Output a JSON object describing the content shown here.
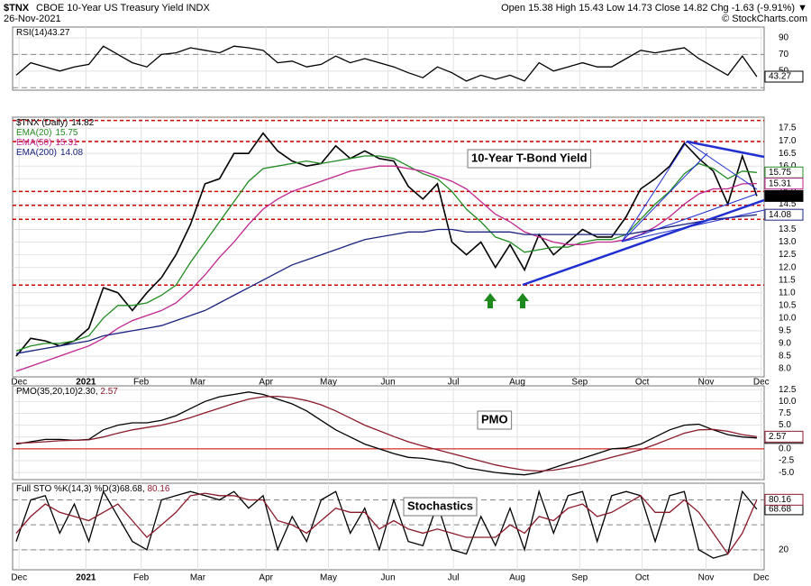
{
  "header": {
    "symbol": "$TNX",
    "name": "CBOE 10-Year US Treasury Yield INDX",
    "date": "26-Nov-2021",
    "quote": "Open 15.38  High 15.43  Low 14.73  Close 14.82  Chg -1.63 (-9.91%) ▼",
    "copyright": "© StockCharts.com"
  },
  "chart_data": [
    {
      "type": "line",
      "title": "RSI(14)",
      "ylim": [
        27,
        103
      ],
      "yticks": [
        90,
        70,
        50
      ],
      "hlines": [
        70,
        30
      ],
      "hline_color": "#888888",
      "series": [
        {
          "color": "#000000",
          "last_label": "43.27",
          "values": [
            45,
            60,
            55,
            50,
            55,
            58,
            80,
            70,
            60,
            55,
            70,
            72,
            78,
            75,
            72,
            80,
            78,
            75,
            60,
            62,
            55,
            58,
            68,
            60,
            65,
            60,
            55,
            48,
            42,
            55,
            48,
            38,
            45,
            40,
            45,
            38,
            60,
            50,
            55,
            60,
            55,
            55,
            65,
            75,
            72,
            75,
            78,
            65,
            55,
            45,
            68,
            43.27
          ]
        }
      ]
    },
    {
      "type": "line",
      "annotation": "10-Year T-Bond Yield",
      "ylim": [
        7.68,
        17.93
      ],
      "yticks": [
        {
          "value": 8,
          "label": "8.0"
        },
        8.5,
        {
          "value": 9,
          "label": "9.0"
        },
        9.5,
        {
          "value": 10,
          "label": "10.0"
        },
        10.5,
        {
          "value": 11,
          "label": "11.0"
        },
        11.5,
        {
          "value": 12,
          "label": "12.0"
        },
        12.5,
        {
          "value": 13,
          "label": "13.0"
        },
        13.5,
        {
          "value": 14,
          "label": "14.0"
        },
        14.5,
        {
          "value": 15,
          "label": "15.0"
        },
        15.5,
        {
          "value": 16,
          "label": "16.0"
        },
        16.5,
        {
          "value": 17,
          "label": "17.0"
        },
        17.5
      ],
      "xlim": [
        0,
        51.5
      ],
      "xticks": [
        {
          "value": 0.2,
          "label": "Dec"
        },
        {
          "value": 4.8,
          "label": "2021"
        },
        {
          "value": 8.6,
          "label": "Feb"
        },
        {
          "value": 12.5,
          "label": "Mar"
        },
        {
          "value": 17.2,
          "label": "Apr"
        },
        {
          "value": 21.5,
          "label": "May"
        },
        {
          "value": 25.6,
          "label": "Jun"
        },
        {
          "value": 30.1,
          "label": "Jul"
        },
        {
          "value": 34.5,
          "label": "Aug"
        },
        {
          "value": 38.8,
          "label": "Sep"
        },
        {
          "value": 43.1,
          "label": "Oct"
        },
        {
          "value": 47.5,
          "label": "Nov"
        },
        {
          "value": 51.3,
          "label": "Dec"
        }
      ],
      "hlines": [
        17.8,
        16.97,
        15.0,
        14.45,
        13.9,
        11.3
      ],
      "hline_color": "#cc0000",
      "series": [
        {
          "name": "$TNX (Daily)",
          "color": "#000000",
          "last_label": "14.82",
          "values": [
            8.5,
            9.2,
            9.1,
            8.9,
            9.1,
            9.6,
            11.2,
            11.0,
            10.3,
            11.0,
            11.6,
            12.5,
            13.7,
            15.3,
            15.5,
            16.5,
            16.5,
            17.3,
            16.6,
            16.2,
            16.0,
            16.1,
            16.8,
            16.3,
            16.6,
            16.3,
            16.2,
            15.2,
            14.7,
            15.3,
            13.0,
            12.5,
            13.0,
            12.0,
            12.9,
            11.9,
            13.3,
            12.5,
            13.0,
            13.5,
            13.2,
            13.2,
            14.0,
            15.1,
            15.5,
            16.0,
            16.9,
            16.3,
            15.8,
            14.5,
            16.4,
            14.82
          ]
        },
        {
          "name": "EMA(20)",
          "color": "#228b22",
          "last_label": "15.75",
          "values": [
            8.7,
            8.9,
            9.0,
            9.0,
            9.1,
            9.3,
            10.0,
            10.5,
            10.5,
            10.6,
            10.9,
            11.3,
            12.2,
            13.0,
            13.8,
            14.6,
            15.4,
            15.9,
            16.0,
            16.1,
            16.2,
            16.1,
            16.2,
            16.3,
            16.4,
            16.4,
            16.3,
            16.0,
            15.7,
            15.5,
            15.0,
            14.3,
            13.8,
            13.2,
            13.0,
            12.6,
            12.7,
            12.8,
            12.8,
            13.0,
            13.1,
            13.1,
            13.3,
            13.9,
            14.5,
            15.0,
            15.7,
            16.1,
            15.9,
            15.5,
            15.8,
            15.75
          ]
        },
        {
          "name": "EMA(50)",
          "color": "#c0268f",
          "last_label": "15.31",
          "values": [
            7.9,
            8.1,
            8.3,
            8.5,
            8.7,
            8.9,
            9.2,
            9.6,
            9.9,
            10.1,
            10.3,
            10.6,
            11.1,
            11.7,
            12.4,
            13.0,
            13.7,
            14.3,
            14.7,
            15.0,
            15.2,
            15.4,
            15.6,
            15.8,
            15.9,
            16.0,
            16.0,
            15.9,
            15.8,
            15.6,
            15.4,
            15.1,
            14.6,
            14.1,
            13.8,
            13.4,
            13.2,
            13.0,
            12.9,
            12.9,
            13.0,
            13.0,
            13.1,
            13.3,
            13.6,
            14.0,
            14.5,
            14.9,
            15.1,
            15.1,
            15.3,
            15.31
          ]
        },
        {
          "name": "EMA(200)",
          "color": "#1a237e",
          "last_label": "14.08",
          "values": [
            8.6,
            8.7,
            8.8,
            8.9,
            9.0,
            9.1,
            9.3,
            9.4,
            9.5,
            9.6,
            9.7,
            9.9,
            10.1,
            10.3,
            10.6,
            10.9,
            11.2,
            11.5,
            11.8,
            12.1,
            12.3,
            12.5,
            12.7,
            12.9,
            13.1,
            13.2,
            13.3,
            13.4,
            13.4,
            13.5,
            13.5,
            13.4,
            13.4,
            13.4,
            13.4,
            13.3,
            13.3,
            13.3,
            13.3,
            13.3,
            13.3,
            13.3,
            13.3,
            13.4,
            13.5,
            13.6,
            13.7,
            13.8,
            13.9,
            13.95,
            14.02,
            14.08
          ]
        }
      ]
    },
    {
      "type": "line",
      "title": "PMO(35,20,10)",
      "annotation": "PMO",
      "ylim": [
        -6.5,
        13.3
      ],
      "yticks": [
        12.5,
        {
          "value": 10,
          "label": "10.0"
        },
        7.5,
        {
          "value": 5,
          "label": "5.0"
        },
        2.5,
        {
          "value": 0,
          "label": "0.0"
        },
        -2.5,
        {
          "value": -5,
          "label": "-5.0"
        }
      ],
      "hlines": [
        0
      ],
      "hline_color": "#cc0000",
      "series": [
        {
          "color": "#000000",
          "last_label": "2.30",
          "values": [
            1,
            1.5,
            2,
            2,
            1.8,
            2,
            4,
            5,
            5.5,
            5.5,
            6,
            7,
            8.5,
            10,
            11,
            11.5,
            12,
            11.5,
            10.5,
            9.5,
            8,
            6,
            4,
            2.5,
            1,
            0,
            -1,
            -1.8,
            -2,
            -2.5,
            -3,
            -4,
            -4.5,
            -5,
            -5.3,
            -5.5,
            -5,
            -4,
            -3,
            -2,
            -1,
            0,
            0.2,
            1,
            2.5,
            4,
            5,
            5.2,
            4,
            3,
            2.5,
            2.3
          ]
        },
        {
          "color": "#8b1a2b",
          "last_label": "2.57",
          "values": [
            1.2,
            1.3,
            1.5,
            1.7,
            1.8,
            1.9,
            2.5,
            3.3,
            4,
            4.5,
            5,
            5.7,
            6.6,
            7.6,
            8.6,
            9.6,
            10.5,
            11,
            11.1,
            10.8,
            10.2,
            9.3,
            8,
            6.5,
            5,
            3.8,
            2.6,
            1.5,
            0.6,
            -0.2,
            -1,
            -1.8,
            -2.6,
            -3.4,
            -4,
            -4.5,
            -4.7,
            -4.5,
            -4,
            -3.4,
            -2.6,
            -1.8,
            -1,
            -0.2,
            0.9,
            2.1,
            3.3,
            4,
            4.1,
            3.7,
            3,
            2.57
          ]
        }
      ]
    },
    {
      "type": "line",
      "title": "Full STO %K(14,3) %D(3)",
      "annotation": "Stochastics",
      "ylim": [
        -4,
        100
      ],
      "yticks": [
        20
      ],
      "hlines": [
        80,
        50,
        20
      ],
      "hline_color": "#888888",
      "series": [
        {
          "color": "#000000",
          "last_label": "68.68",
          "values": [
            30,
            80,
            85,
            40,
            75,
            30,
            90,
            60,
            30,
            20,
            80,
            85,
            90,
            85,
            80,
            90,
            70,
            85,
            20,
            60,
            30,
            80,
            90,
            40,
            70,
            20,
            80,
            30,
            25,
            75,
            20,
            15,
            60,
            25,
            70,
            20,
            90,
            40,
            85,
            90,
            30,
            85,
            90,
            85,
            30,
            85,
            90,
            20,
            10,
            15,
            90,
            68.68
          ]
        },
        {
          "color": "#8b1a2b",
          "last_label": "80.16",
          "values": [
            40,
            60,
            75,
            65,
            60,
            55,
            65,
            75,
            55,
            35,
            50,
            65,
            85,
            88,
            85,
            85,
            80,
            80,
            55,
            50,
            40,
            55,
            70,
            65,
            65,
            45,
            55,
            45,
            40,
            45,
            40,
            35,
            35,
            35,
            50,
            40,
            60,
            55,
            70,
            75,
            60,
            65,
            75,
            85,
            65,
            65,
            80,
            65,
            40,
            15,
            40,
            80.16
          ]
        }
      ]
    }
  ]
}
